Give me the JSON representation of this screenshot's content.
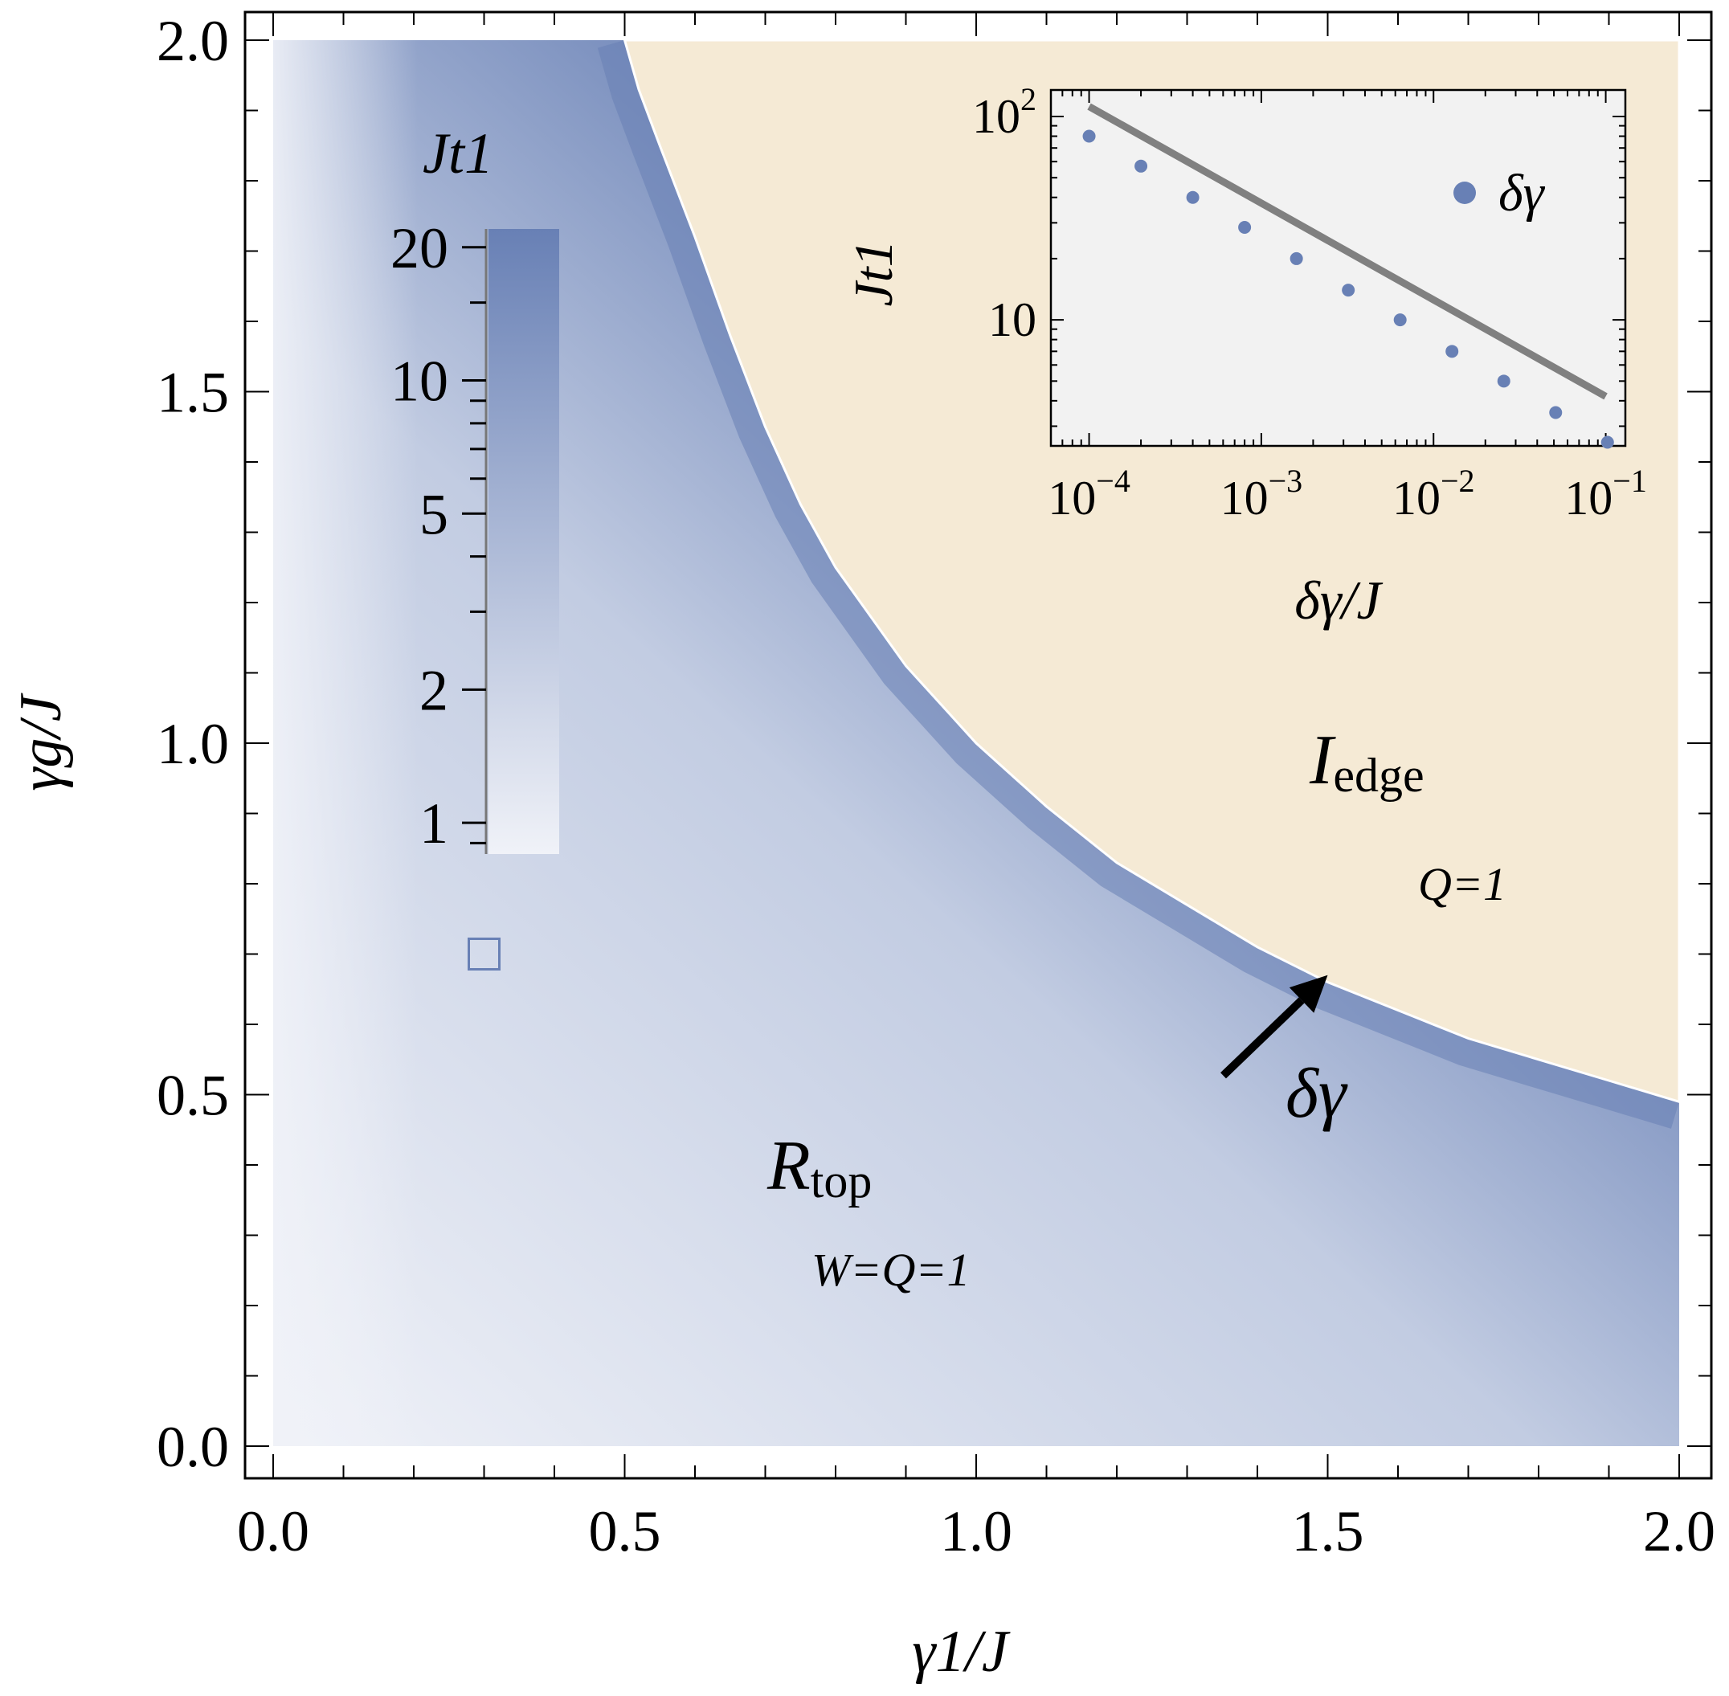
{
  "chart_data": [
    {
      "type": "heatmap",
      "xlabel": "γ1/J",
      "ylabel": "γg/J",
      "xlim": [
        0,
        2
      ],
      "ylim": [
        0,
        2
      ],
      "x_ticks": [
        "0.0",
        "0.5",
        "1.0",
        "1.5",
        "2.0"
      ],
      "y_ticks": [
        "0.0",
        "0.5",
        "1.0",
        "1.5",
        "2.0"
      ],
      "colorbar": {
        "title": "Jt1",
        "scale": "log",
        "range": [
          0.85,
          22
        ],
        "tick_labels": [
          "1",
          "2",
          "5",
          "10",
          "20"
        ],
        "tick_values": [
          1,
          2,
          5,
          10,
          20
        ],
        "colors": [
          "#f0f2f8",
          "#6880b5"
        ]
      },
      "regions": [
        {
          "name": "Rtop",
          "label_main": "R",
          "label_sub": "top",
          "invariants": "W=Q=1",
          "color": "#6880b5"
        },
        {
          "name": "Iedge",
          "label_main": "I",
          "label_sub": "edge",
          "invariants": "Q=1",
          "color": "#d4a040"
        }
      ],
      "region_fill_edge": "#f5ead5",
      "boundary_curve": {
        "x": [
          0.5,
          0.52,
          0.55,
          0.6,
          0.65,
          0.7,
          0.75,
          0.8,
          0.9,
          1.0,
          1.1,
          1.2,
          1.3,
          1.4,
          1.5,
          1.6,
          1.7,
          1.8,
          1.9,
          2.0
        ],
        "y": [
          2.0,
          1.93,
          1.85,
          1.72,
          1.58,
          1.45,
          1.34,
          1.25,
          1.11,
          1.0,
          0.91,
          0.83,
          0.77,
          0.71,
          0.66,
          0.62,
          0.58,
          0.55,
          0.52,
          0.49
        ]
      },
      "marker": {
        "shape": "square",
        "x": 0.3,
        "y": 0.7
      },
      "annotation": {
        "text": "δγ",
        "arrow_to": [
          1.5,
          0.67
        ]
      }
    },
    {
      "type": "scatter",
      "scale": "log-log",
      "xlabel": "δγ/J",
      "ylabel": "Jt1",
      "xlim": [
        6e-05,
        0.13
      ],
      "ylim": [
        2.4,
        135
      ],
      "x_ticks": [
        {
          "base": "10",
          "exp": "−4",
          "value": 0.0001
        },
        {
          "base": "10",
          "exp": "−3",
          "value": 0.001
        },
        {
          "base": "10",
          "exp": "−2",
          "value": 0.01
        },
        {
          "base": "10",
          "exp": "−1",
          "value": 0.1
        }
      ],
      "y_ticks": [
        {
          "base": "10",
          "exp": "2",
          "value": 100
        },
        {
          "base": "10",
          "exp": "",
          "value": 10
        }
      ],
      "legend": {
        "label": "δγ",
        "position": "right"
      },
      "series": [
        {
          "name": "δγ",
          "color": "#6880b5",
          "x": [
            0.0001,
            0.0002,
            0.0004,
            0.0008,
            0.0016,
            0.0032,
            0.0064,
            0.0128,
            0.0256,
            0.0512,
            0.1024
          ],
          "y": [
            80,
            57,
            40,
            28.5,
            20,
            14,
            10,
            7,
            5,
            3.5,
            2.5
          ]
        }
      ],
      "fit_line": {
        "color": "#808080",
        "x": [
          0.0001,
          0.1
        ],
        "y": [
          112,
          4.2
        ]
      }
    }
  ]
}
